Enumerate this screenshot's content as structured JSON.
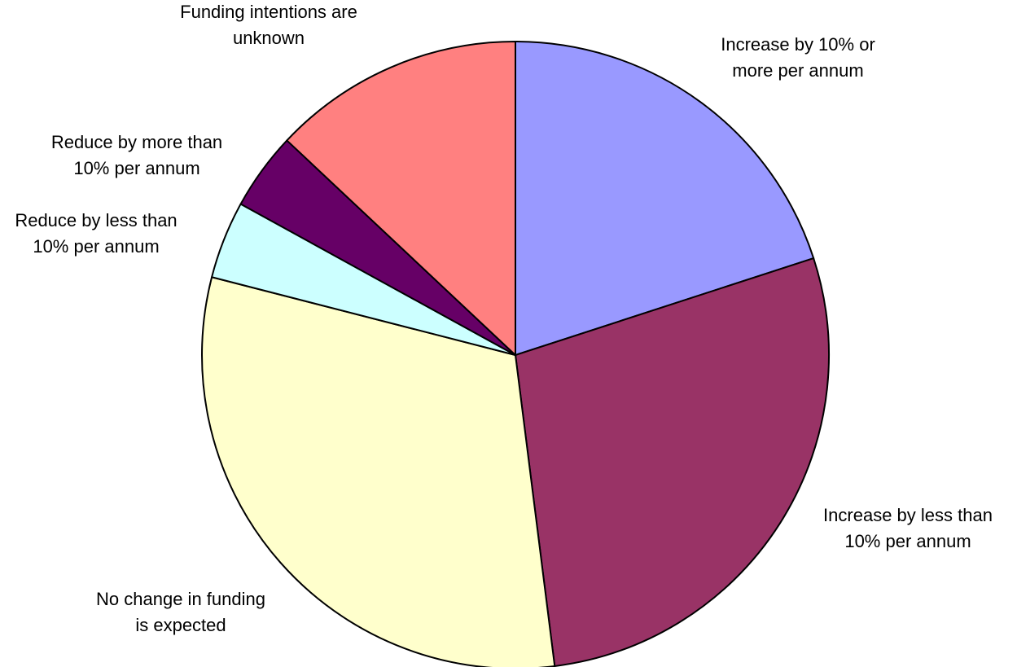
{
  "chart_data": {
    "type": "pie",
    "title": "",
    "slices": [
      {
        "label_lines": [
          "Increase by 10% or",
          "more per annum"
        ],
        "value": 20,
        "color": "#9999ff"
      },
      {
        "label_lines": [
          "Increase by less than",
          "10% per annum"
        ],
        "value": 28,
        "color": "#993366"
      },
      {
        "label_lines": [
          "No change in funding",
          "is expected"
        ],
        "value": 31,
        "color": "#ffffcc"
      },
      {
        "label_lines": [
          "Reduce by less than",
          "10% per annum"
        ],
        "value": 4,
        "color": "#ccffff"
      },
      {
        "label_lines": [
          "Reduce by more than",
          "10% per annum"
        ],
        "value": 4,
        "color": "#660066"
      },
      {
        "label_lines": [
          "Funding intentions are",
          "unknown"
        ],
        "value": 13,
        "color": "#ff8080"
      }
    ],
    "start_angle_deg": 0,
    "direction": "clockwise",
    "legend": "none"
  }
}
